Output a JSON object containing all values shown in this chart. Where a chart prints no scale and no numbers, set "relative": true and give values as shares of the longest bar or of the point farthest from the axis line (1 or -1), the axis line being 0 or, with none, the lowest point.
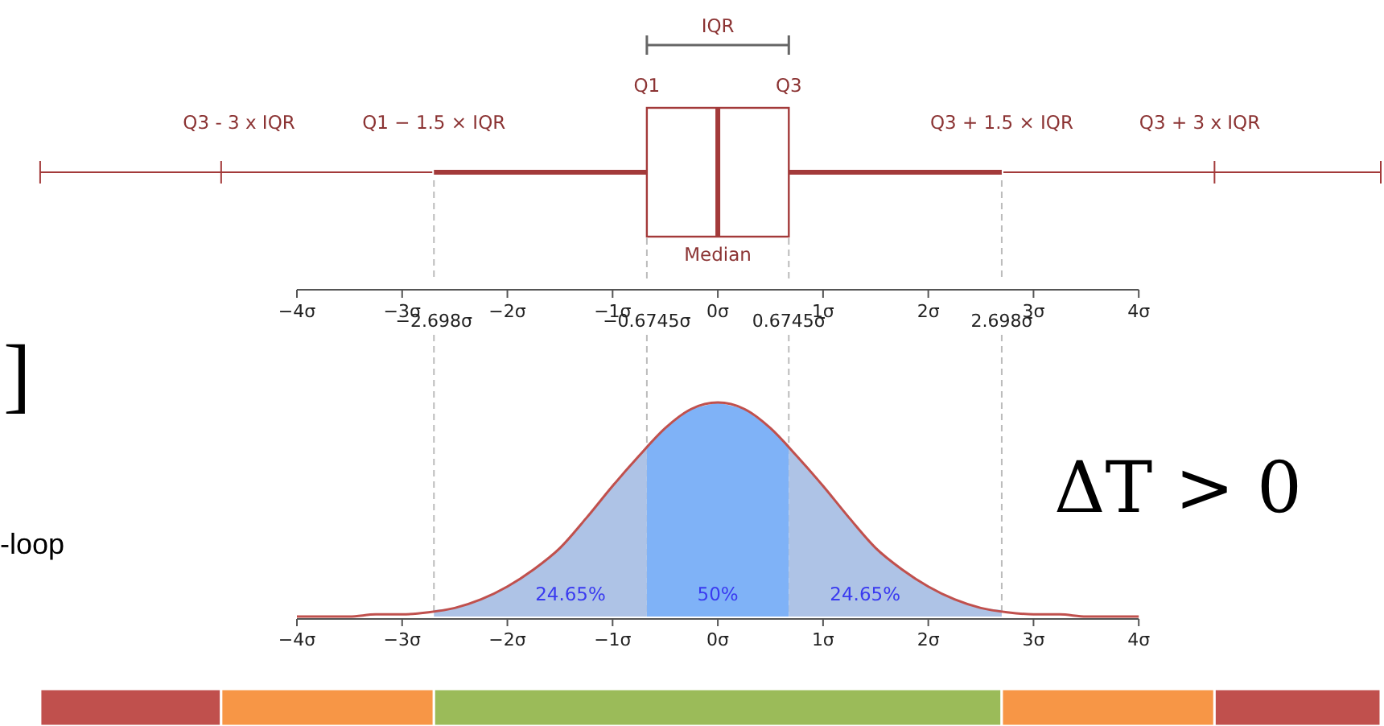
{
  "chart_data": [
    {
      "type": "box",
      "orientation": "horizontal",
      "categories": [
        null
      ],
      "color": "#a33a3a",
      "boxes": [
        {
          "low": -2.698,
          "q1": -0.6745,
          "median": 0,
          "q3": 0.6745,
          "high": 2.698
        }
      ],
      "xlim": [
        -4,
        4
      ],
      "xticks": [
        {
          "value": -4,
          "label": "−4σ"
        },
        {
          "value": -3,
          "label": "−3σ"
        },
        {
          "value": -2,
          "label": "−2σ"
        },
        {
          "value": -1,
          "label": "−1σ"
        },
        {
          "value": 0,
          "label": "0σ"
        },
        {
          "value": 1,
          "label": "1σ"
        },
        {
          "value": 2,
          "label": "2σ"
        },
        {
          "value": 3,
          "label": "3σ"
        },
        {
          "value": 4,
          "label": "4σ"
        }
      ],
      "annotations": [
        "IQR",
        "Q1",
        "Q3",
        "Q1 − 1.5 × IQR",
        "Q3 + 1.5 × IQR",
        "Q3 - 3 x IQR",
        "Q3 + 3 x IQR",
        "Median"
      ]
    },
    {
      "type": "line",
      "relative": true,
      "xlim": [
        -4,
        4
      ],
      "xticks": [
        {
          "value": -4,
          "label": "−4σ"
        },
        {
          "value": -3,
          "label": "−3σ"
        },
        {
          "value": -2,
          "label": "−2σ"
        },
        {
          "value": -1,
          "label": "−1σ"
        },
        {
          "value": 0,
          "label": "0σ"
        },
        {
          "value": 1,
          "label": "1σ"
        },
        {
          "value": 2,
          "label": "2σ"
        },
        {
          "value": 3,
          "label": "3σ"
        },
        {
          "value": 4,
          "label": "4σ"
        }
      ],
      "series": [
        {
          "type": "area",
          "color": "#aec3e6",
          "x": [
            -2.698,
            -2.5,
            -2.25,
            -2,
            -1.75,
            -1.5,
            -1.25,
            -1,
            -0.75,
            -0.6745
          ],
          "values": [
            0.03,
            0.04,
            0.08,
            0.14,
            0.22,
            0.32,
            0.46,
            0.61,
            0.75,
            0.8
          ]
        },
        {
          "type": "area",
          "color": "#7fb2f7",
          "x": [
            -0.6745,
            -0.5,
            -0.25,
            0,
            0.25,
            0.5,
            0.6745
          ],
          "values": [
            0.8,
            0.88,
            0.97,
            1,
            0.97,
            0.88,
            0.8
          ]
        },
        {
          "type": "area",
          "color": "#aec3e6",
          "x": [
            0.6745,
            0.75,
            1,
            1.25,
            1.5,
            1.75,
            2,
            2.25,
            2.5,
            2.698
          ],
          "values": [
            0.8,
            0.75,
            0.61,
            0.46,
            0.32,
            0.22,
            0.14,
            0.08,
            0.04,
            0.03
          ]
        },
        {
          "type": "line",
          "color": "#c0504d",
          "x": [
            -4,
            -3.75,
            -3.5,
            -3.25,
            -3,
            -2.75,
            -2.5,
            -2.25,
            -2,
            -1.75,
            -1.5,
            -1.25,
            -1,
            -0.75,
            -0.5,
            -0.25,
            0,
            0.25,
            0.5,
            0.75,
            1,
            1.25,
            1.5,
            1.75,
            2,
            2.25,
            2.5,
            2.75,
            3,
            3.25,
            3.5,
            3.75,
            4
          ],
          "values": [
            0,
            0,
            0,
            0.01,
            0.01,
            0.02,
            0.04,
            0.08,
            0.14,
            0.22,
            0.32,
            0.46,
            0.61,
            0.75,
            0.88,
            0.97,
            1,
            0.97,
            0.88,
            0.75,
            0.61,
            0.46,
            0.32,
            0.22,
            0.14,
            0.08,
            0.04,
            0.02,
            0.01,
            0.01,
            0,
            0,
            0
          ]
        }
      ],
      "ref_lines": [
        {
          "axis": "x",
          "value": -2.698,
          "label": "−2.698σ",
          "color": "#bbbbbb",
          "line_style": "dashed"
        },
        {
          "axis": "x",
          "value": -0.6745,
          "label": "−0.6745σ",
          "color": "#bbbbbb",
          "line_style": "dashed"
        },
        {
          "axis": "x",
          "value": 0.6745,
          "label": "0.6745σ",
          "color": "#bbbbbb",
          "line_style": "dashed"
        },
        {
          "axis": "x",
          "value": 2.698,
          "label": "2.698σ",
          "color": "#bbbbbb",
          "line_style": "dashed"
        }
      ],
      "annotations": [
        "24.65%",
        "50%",
        "24.65%",
        "]",
        "-loop",
        "ΔT > 0"
      ]
    }
  ]
}
